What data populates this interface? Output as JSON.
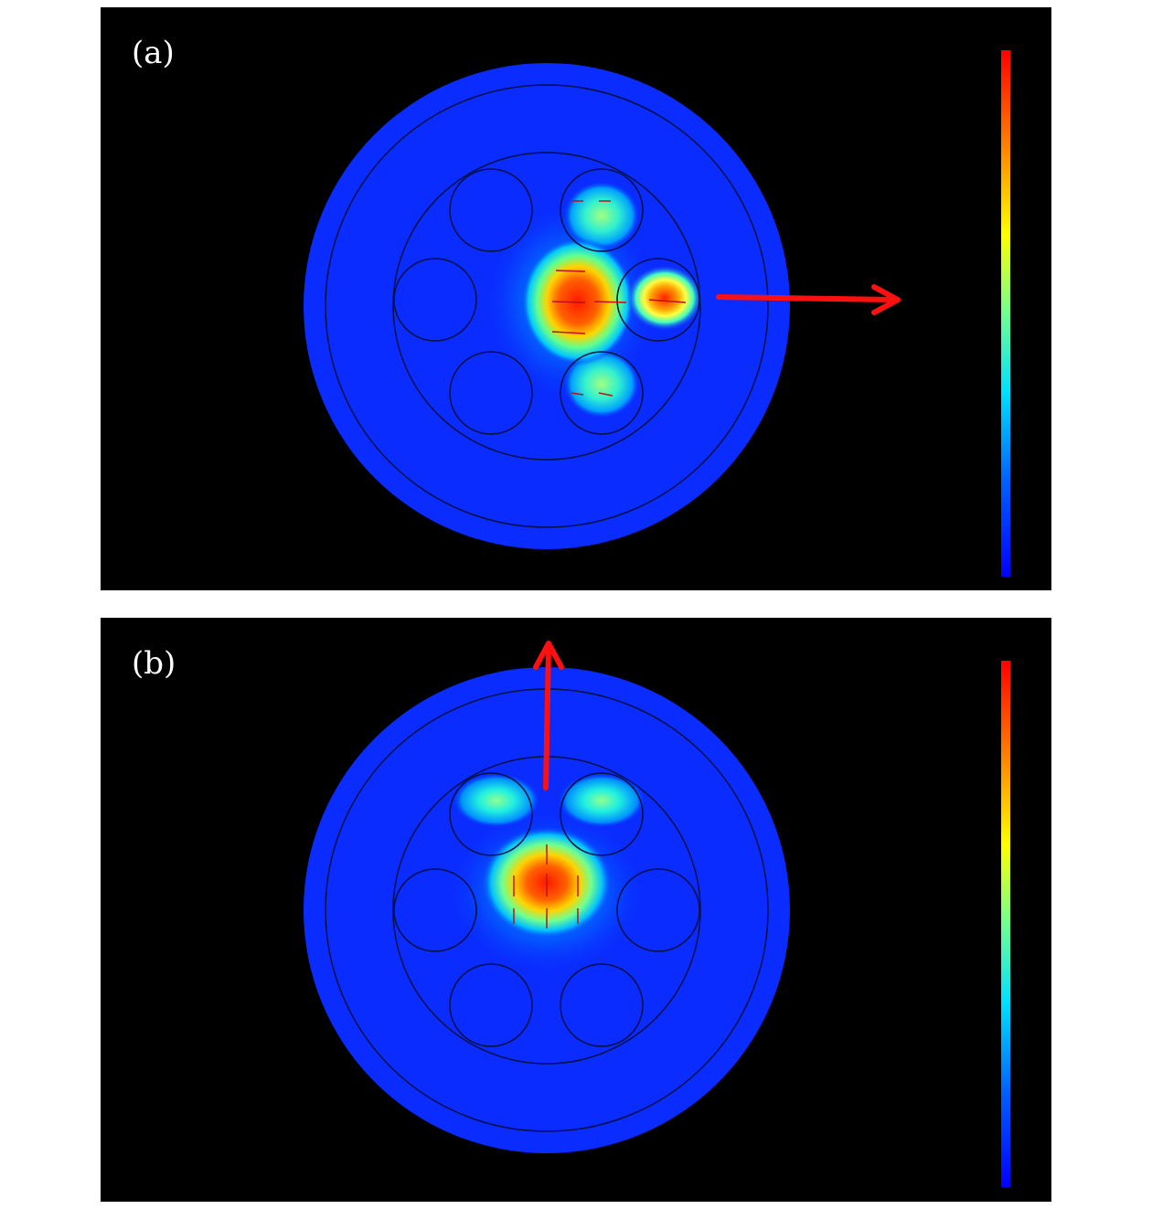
{
  "panels": [
    {
      "id": "a",
      "label": "(a)",
      "arrow_direction": "right"
    },
    {
      "id": "b",
      "label": "(b)",
      "arrow_direction": "up"
    }
  ],
  "colors": {
    "background": "#000000",
    "cladding": "#0a2cff",
    "arrow": "#ff1010",
    "colorbar": [
      "#0000ff",
      "#0080ff",
      "#00ffff",
      "#80ff80",
      "#ffff00",
      "#ff8000",
      "#ff0000"
    ]
  }
}
